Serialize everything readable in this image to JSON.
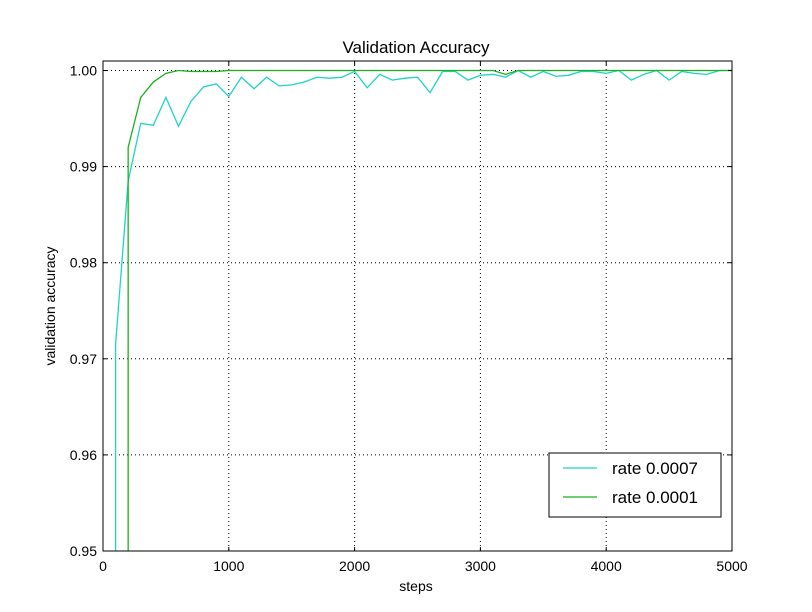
{
  "chart_data": {
    "type": "line",
    "title": "Validation Accuracy",
    "xlabel": "steps",
    "ylabel": "validation accuracy",
    "xlim": [
      0,
      5000
    ],
    "ylim": [
      0.95,
      1.001
    ],
    "xticks": [
      "0",
      "1000",
      "2000",
      "3000",
      "4000",
      "5000"
    ],
    "yticks": [
      "0.95",
      "0.96",
      "0.97",
      "0.98",
      "0.99",
      "1.00"
    ],
    "xtick_values": [
      0,
      1000,
      2000,
      3000,
      4000,
      5000
    ],
    "ytick_values": [
      0.95,
      0.96,
      0.97,
      0.98,
      0.99,
      1.0
    ],
    "grid": true,
    "legend_position": "bottom-right",
    "series": [
      {
        "name": "rate 0.0007",
        "color": "#1fd3c6",
        "x": [
          100,
          200,
          300,
          400,
          500,
          600,
          700,
          800,
          900,
          1000,
          1100,
          1200,
          1300,
          1400,
          1500,
          1600,
          1700,
          1800,
          1900,
          2000,
          2100,
          2200,
          2300,
          2400,
          2500,
          2600,
          2700,
          2800,
          2900,
          3000,
          3100,
          3200,
          3300,
          3400,
          3500,
          3600,
          3700,
          3800,
          3900,
          4000,
          4100,
          4200,
          4300,
          4400,
          4500,
          4600,
          4700,
          4800,
          4900,
          5000
        ],
        "values": [
          0.9715,
          0.9885,
          0.9945,
          0.9943,
          0.9972,
          0.9942,
          0.9968,
          0.9983,
          0.9986,
          0.9973,
          0.9993,
          0.9981,
          0.9993,
          0.9984,
          0.9985,
          0.9988,
          0.9993,
          0.9992,
          0.9993,
          0.9999,
          0.9982,
          0.9996,
          0.999,
          0.9992,
          0.9993,
          0.9977,
          0.9999,
          0.9999,
          0.999,
          0.9995,
          0.9996,
          0.9993,
          1.0,
          0.9993,
          0.9999,
          0.9994,
          0.9995,
          0.9999,
          0.9999,
          0.9997,
          1.0,
          0.999,
          0.9996,
          1.0,
          0.999,
          0.9999,
          0.9997,
          0.9996,
          1.0,
          1.0
        ]
      },
      {
        "name": "rate 0.0001",
        "color": "#1fb01f",
        "x": [
          200,
          300,
          400,
          500,
          600,
          700,
          800,
          900,
          1000,
          1100,
          1200,
          1300,
          1400,
          1500,
          1600,
          1700,
          1800,
          1900,
          2000,
          2100,
          2200,
          2300,
          2400,
          2500,
          2600,
          2700,
          2800,
          2900,
          3000,
          3100,
          3200,
          3300,
          3400,
          3500,
          3600,
          3700,
          3800,
          3900,
          4000,
          4100,
          4200,
          4300,
          4400,
          4500,
          4600,
          4700,
          4800,
          4900,
          5000
        ],
        "values": [
          0.992,
          0.9972,
          0.9988,
          0.9997,
          1.0,
          0.9999,
          0.9999,
          0.9999,
          1.0,
          1.0,
          1.0,
          1.0,
          1.0,
          1.0,
          1.0,
          1.0,
          1.0,
          1.0,
          1.0,
          1.0,
          1.0,
          1.0,
          1.0,
          1.0,
          1.0,
          1.0,
          1.0,
          1.0,
          1.0,
          1.0,
          0.9996,
          1.0,
          1.0,
          1.0,
          1.0,
          1.0,
          1.0,
          1.0,
          1.0,
          1.0,
          1.0,
          1.0,
          1.0,
          1.0,
          1.0,
          1.0,
          1.0,
          1.0,
          1.0
        ]
      }
    ]
  }
}
